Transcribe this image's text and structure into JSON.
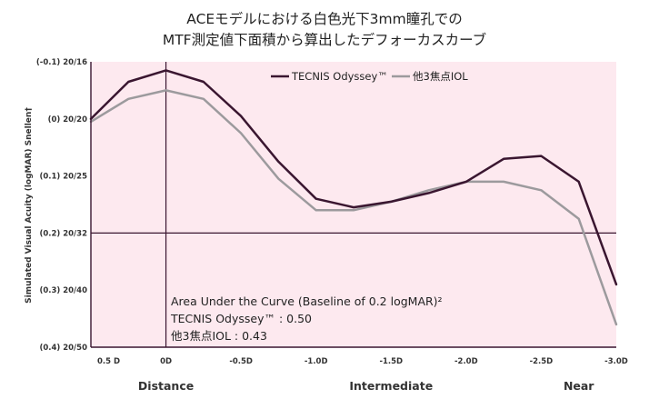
{
  "chart_data": {
    "type": "line",
    "title_lines": [
      "ACEモデルにおける白色光下3mm瞳孔での",
      "MTF測定値下面積から算出したデフォーカスカーブ"
    ],
    "ylabel": "Simulated Visual Acuity (logMAR) Snellen†",
    "ylim": [
      0.4,
      -0.1
    ],
    "y_ticks": [
      {
        "value": -0.1,
        "label": "(-0.1) 20/16"
      },
      {
        "value": 0.0,
        "label": "(0) 20/20"
      },
      {
        "value": 0.1,
        "label": "(0.1) 20/25"
      },
      {
        "value": 0.2,
        "label": "(0.2) 20/32"
      },
      {
        "value": 0.3,
        "label": "(0.3) 20/40"
      },
      {
        "value": 0.4,
        "label": "(0.4) 20/50"
      }
    ],
    "xlim": [
      0.5,
      -3.0
    ],
    "x_ticks": [
      {
        "value": 0.5,
        "label": "0.5 D"
      },
      {
        "value": 0.0,
        "label": "0D"
      },
      {
        "value": -0.5,
        "label": "-0.5D"
      },
      {
        "value": -1.0,
        "label": "-1.0D"
      },
      {
        "value": -1.5,
        "label": "-1.5D"
      },
      {
        "value": -2.0,
        "label": "-2.0D"
      },
      {
        "value": -2.5,
        "label": "-2.5D"
      },
      {
        "value": -3.0,
        "label": "-3.0D"
      }
    ],
    "x_regions": [
      {
        "value": 0.0,
        "label": "Distance"
      },
      {
        "value": -1.5,
        "label": "Intermediate"
      },
      {
        "value": -2.75,
        "label": "Near"
      }
    ],
    "x": [
      0.5,
      0.25,
      0.0,
      -0.25,
      -0.5,
      -0.75,
      -1.0,
      -1.25,
      -1.5,
      -1.75,
      -2.0,
      -2.25,
      -2.5,
      -2.75,
      -3.0
    ],
    "series": [
      {
        "name": "TECNIS Odyssey™",
        "color": "#3a1630",
        "values": [
          0.0,
          -0.065,
          -0.085,
          -0.065,
          -0.005,
          0.075,
          0.14,
          0.155,
          0.145,
          0.13,
          0.11,
          0.07,
          0.065,
          0.11,
          0.29
        ]
      },
      {
        "name": "他3焦点IOL",
        "color": "#9c9a9d",
        "values": [
          0.005,
          -0.035,
          -0.05,
          -0.035,
          0.025,
          0.105,
          0.16,
          0.16,
          0.145,
          0.125,
          0.11,
          0.11,
          0.125,
          0.175,
          0.36
        ]
      }
    ],
    "baseline": {
      "value": 0.2
    },
    "reference_line_x": 0.0,
    "legend_position": "top-right",
    "annotation": [
      "Area Under the Curve (Baseline of 0.2 logMAR)²",
      "TECNIS Odyssey™ : 0.50",
      "他3焦点IOL : 0.43"
    ],
    "colors": {
      "plot_background": "#fde9ef",
      "axis": "#3a1630"
    }
  }
}
